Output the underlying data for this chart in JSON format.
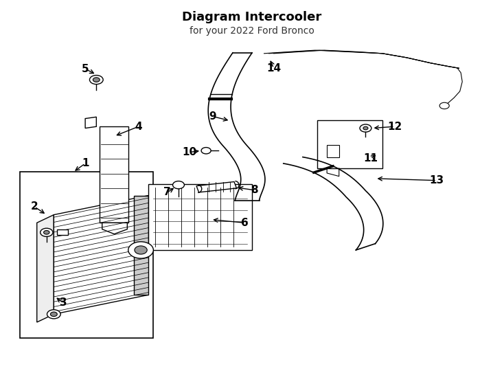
{
  "title": "Diagram Intercooler",
  "subtitle": "for your 2022 Ford Bronco",
  "bg_color": "#ffffff",
  "line_color": "#000000",
  "text_color": "#000000",
  "fig_width": 7.34,
  "fig_height": 5.4,
  "dpi": 100
}
